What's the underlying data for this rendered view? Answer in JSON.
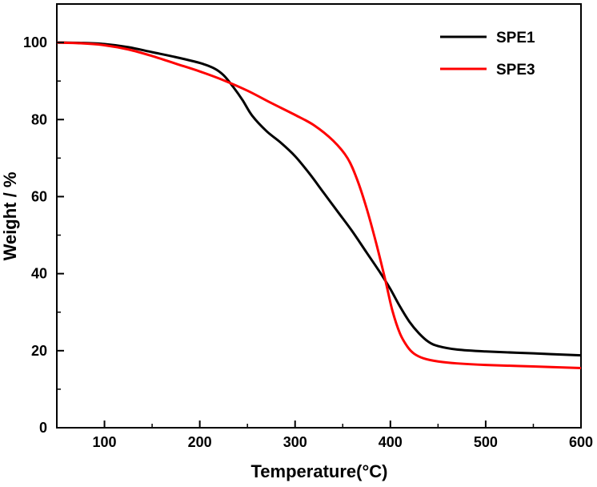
{
  "chart_data": {
    "type": "line",
    "title": "",
    "xlabel": "Temperature(°C)",
    "ylabel": "Weight / %",
    "xlim": [
      50,
      600
    ],
    "ylim": [
      0,
      110
    ],
    "xticks": [
      100,
      200,
      300,
      400,
      500,
      600
    ],
    "yticks": [
      0,
      20,
      40,
      60,
      80,
      100
    ],
    "grid": false,
    "legend_position": "top-right",
    "series": [
      {
        "name": "SPE1",
        "color": "#000000",
        "x": [
          50,
          75,
          100,
          125,
          150,
          175,
          200,
          215,
          225,
          235,
          245,
          255,
          270,
          285,
          300,
          315,
          330,
          345,
          360,
          375,
          390,
          400,
          410,
          420,
          430,
          440,
          450,
          470,
          500,
          550,
          600
        ],
        "y": [
          100,
          99.9,
          99.6,
          98.8,
          97.5,
          96.2,
          94.7,
          93.3,
          91.5,
          88.5,
          85,
          81,
          77,
          74,
          70.5,
          66,
          61,
          56,
          51,
          45.5,
          40,
          36,
          31.5,
          27.5,
          24.5,
          22.3,
          21.2,
          20.3,
          19.8,
          19.3,
          18.8
        ]
      },
      {
        "name": "SPE3",
        "color": "#ff0000",
        "x": [
          50,
          75,
          100,
          125,
          150,
          175,
          200,
          225,
          250,
          275,
          300,
          320,
          340,
          355,
          365,
          375,
          385,
          395,
          402,
          410,
          418,
          425,
          435,
          450,
          470,
          500,
          550,
          600
        ],
        "y": [
          100,
          99.8,
          99.3,
          98.2,
          96.5,
          94.5,
          92.5,
          90.2,
          87.5,
          84.3,
          81.2,
          78.5,
          74.5,
          70,
          64.5,
          57,
          48,
          38,
          30.5,
          24.5,
          21,
          19.2,
          18,
          17.2,
          16.7,
          16.3,
          15.9,
          15.5
        ]
      }
    ]
  }
}
